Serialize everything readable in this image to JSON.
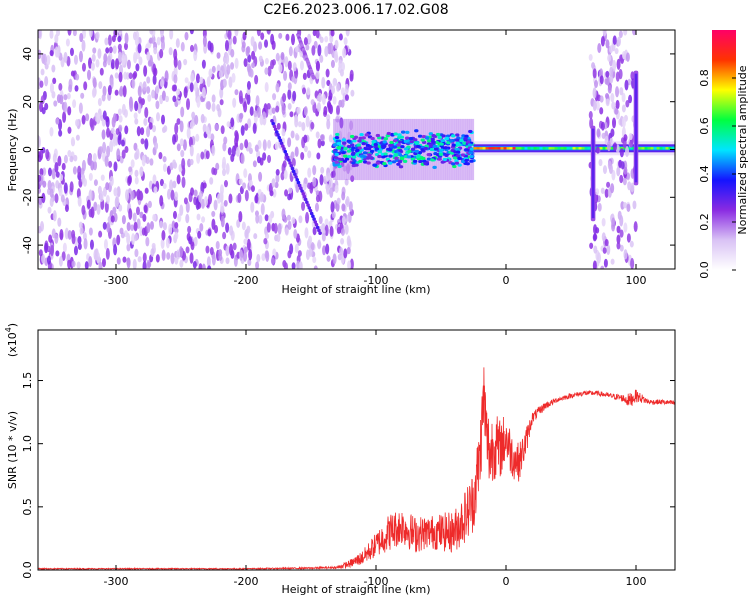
{
  "title": "C2E6.2023.006.17.02.G08",
  "chart_data": [
    {
      "type": "heatmap",
      "xlabel": "Height of straight line (km)",
      "ylabel": "Frequency (Hz)",
      "xlim": [
        -360,
        130
      ],
      "ylim": [
        -50,
        50
      ],
      "xticks": [
        -300,
        -200,
        -100,
        0,
        100
      ],
      "xtick_labels": [
        "-300",
        "-200",
        "-100",
        "0",
        "100"
      ],
      "yticks": [
        -40,
        -20,
        0,
        20,
        40
      ],
      "ytick_labels": [
        "-40",
        "-20",
        "0",
        "20",
        "40"
      ],
      "colorbar": {
        "label": "Normalized spectral amplitude",
        "range": [
          0,
          1
        ],
        "ticks": [
          0.0,
          0.2,
          0.4,
          0.6,
          0.8
        ],
        "tick_labels": [
          "0.0",
          "0.2",
          "0.4",
          "0.6",
          "0.8"
        ],
        "colors": [
          "#ffffff",
          "#d9c2f5",
          "#8a2be2",
          "#1414ff",
          "#00e5ff",
          "#00ff40",
          "#ffff00",
          "#ff3300",
          "#ff0066"
        ]
      },
      "regions": [
        {
          "name": "noise",
          "x": [
            -360,
            -118
          ],
          "freq": [
            -50,
            50
          ],
          "amplitude": 0.15
        },
        {
          "name": "slanted trace",
          "x": [
            -180,
            -143
          ],
          "freq": [
            12,
            -35
          ],
          "amplitude": 0.3
        },
        {
          "name": "steep trace",
          "x": [
            -160,
            -148
          ],
          "freq": [
            48,
            30
          ],
          "amplitude": 0.2
        },
        {
          "name": "signal band",
          "x": [
            -133,
            -25
          ],
          "freq": [
            -8,
            8
          ],
          "amplitude": 0.4
        },
        {
          "name": "carrier line",
          "x": [
            -25,
            130
          ],
          "freq": [
            -1,
            2
          ],
          "amplitude": 0.7
        },
        {
          "name": "noise",
          "x": [
            65,
            100
          ],
          "freq": [
            -50,
            50
          ],
          "amplitude": 0.15
        },
        {
          "name": "vertical spike",
          "x": [
            66,
            68
          ],
          "freq": [
            -30,
            10
          ],
          "amplitude": 0.3
        },
        {
          "name": "vertical spike",
          "x": [
            99,
            101
          ],
          "freq": [
            -15,
            33
          ],
          "amplitude": 0.3
        }
      ]
    },
    {
      "type": "line",
      "xlabel": "Height of straight line (km)",
      "ylabel": "SNR (10 * v/v)",
      "scale_label": "(x10",
      "scale_exp": "4",
      "scale_close": ")",
      "xlim": [
        -360,
        130
      ],
      "ylim": [
        0,
        1.9
      ],
      "xticks": [
        -300,
        -200,
        -100,
        0,
        100
      ],
      "xtick_labels": [
        "-300",
        "-200",
        "-100",
        "0",
        "100"
      ],
      "yticks": [
        0.0,
        0.5,
        1.0,
        1.5
      ],
      "ytick_labels": [
        "0.0",
        "0.5",
        "1.0",
        "1.5"
      ],
      "color": "#ee2a2a",
      "series": [
        {
          "x": [
            -360,
            -300,
            -250,
            -200,
            -150,
            -130,
            -120,
            -110,
            -100,
            -90,
            -80,
            -70,
            -60,
            -50,
            -40,
            -30,
            -25,
            -20,
            -17,
            -15,
            -12,
            -10,
            -5,
            0,
            5,
            10,
            15,
            20,
            30,
            40,
            50,
            60,
            70,
            80,
            90,
            95,
            100,
            110,
            120,
            130
          ],
          "y": [
            0.01,
            0.01,
            0.01,
            0.01,
            0.015,
            0.02,
            0.05,
            0.1,
            0.2,
            0.3,
            0.35,
            0.28,
            0.3,
            0.3,
            0.3,
            0.45,
            0.55,
            0.9,
            1.4,
            1.05,
            0.9,
            1.0,
            0.95,
            1.05,
            0.9,
            0.85,
            1.0,
            1.2,
            1.3,
            1.35,
            1.38,
            1.4,
            1.4,
            1.38,
            1.36,
            1.34,
            1.38,
            1.33,
            1.33,
            1.32
          ],
          "amplitude": [
            0.004,
            0.004,
            0.004,
            0.004,
            0.006,
            0.01,
            0.03,
            0.06,
            0.1,
            0.15,
            0.15,
            0.15,
            0.13,
            0.15,
            0.17,
            0.22,
            0.25,
            0.3,
            0.3,
            0.3,
            0.3,
            0.28,
            0.25,
            0.2,
            0.18,
            0.15,
            0.12,
            0.05,
            0.03,
            0.02,
            0.02,
            0.02,
            0.02,
            0.02,
            0.03,
            0.06,
            0.05,
            0.02,
            0.02,
            0.02
          ]
        }
      ]
    }
  ]
}
